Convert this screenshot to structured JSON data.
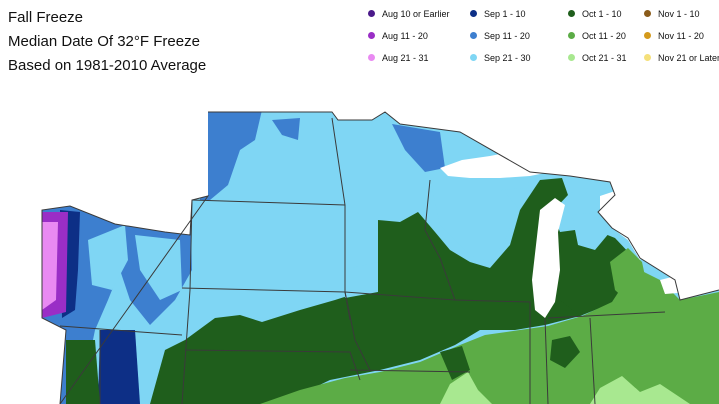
{
  "title": {
    "line1": "Fall Freeze",
    "line2": "Median Date Of 32°F Freeze",
    "line3": "Based on 1981-2010 Average"
  },
  "legend": {
    "items": [
      {
        "label": "Aug 10 or Earlier",
        "color": "#4b1a8a",
        "name": "legend-aug-10-or-earlier"
      },
      {
        "label": "Sep 1 - 10",
        "color": "#0d2f86",
        "name": "legend-sep-1-10"
      },
      {
        "label": "Oct 1 - 10",
        "color": "#1f5e1c",
        "name": "legend-oct-1-10"
      },
      {
        "label": "Nov 1 - 10",
        "color": "#8a5b1a",
        "name": "legend-nov-1-10"
      },
      {
        "label": "Aug 11 - 20",
        "color": "#9a2ec6",
        "name": "legend-aug-11-20"
      },
      {
        "label": "Sep 11 - 20",
        "color": "#3d7fcf",
        "name": "legend-sep-11-20"
      },
      {
        "label": "Oct 11 - 20",
        "color": "#5cac46",
        "name": "legend-oct-11-20"
      },
      {
        "label": "Nov 11 - 20",
        "color": "#d49a1c",
        "name": "legend-nov-11-20"
      },
      {
        "label": "Aug 21 - 31",
        "color": "#e98af2",
        "name": "legend-aug-21-31"
      },
      {
        "label": "Sep 21 - 30",
        "color": "#7fd6f4",
        "name": "legend-sep-21-30"
      },
      {
        "label": "Oct 21 - 31",
        "color": "#a8e890",
        "name": "legend-oct-21-31"
      },
      {
        "label": "Nov 21 or Later",
        "color": "#f5e07a",
        "name": "legend-nov-21-or-later"
      }
    ]
  },
  "map_colors": {
    "sep_11_20": "#3d7fcf",
    "sep_21_30": "#7fd6f4",
    "sep_1_10": "#0d2f86",
    "aug_11_20": "#9a2ec6",
    "aug_21_31": "#e98af2",
    "oct_1_10": "#1f5e1c",
    "oct_11_20": "#5cac46",
    "oct_21_31": "#a8e890",
    "lake": "#ffffff",
    "border": "#3a3a3a"
  }
}
